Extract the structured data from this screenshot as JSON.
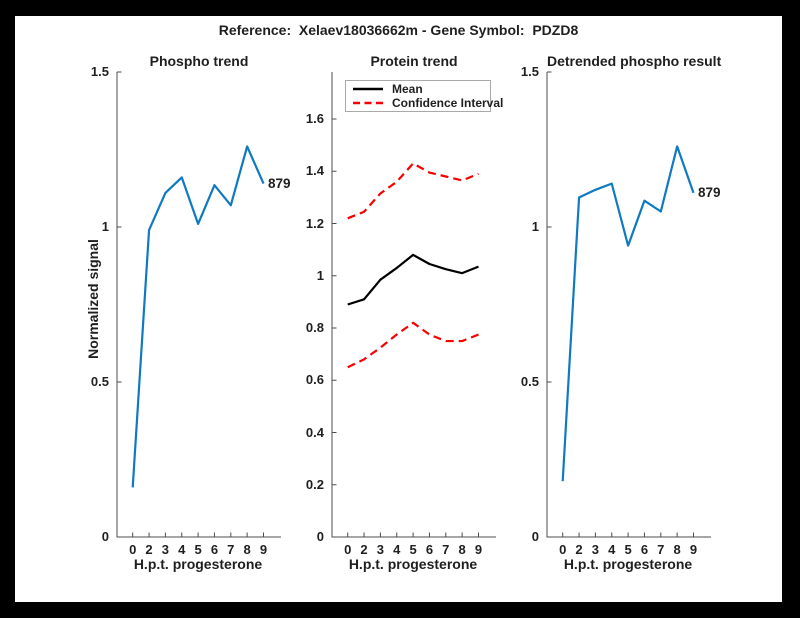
{
  "figure_title": "Reference:  Xelaev18036662m - Gene Symbol:  PDZD8",
  "colors": {
    "blue": "#0f79c2",
    "red": "#f80000",
    "black": "#000000",
    "axis": "#4d4d4d",
    "text": "#1f1f1f",
    "legend_border": "#a9a9a9",
    "figure_bg": "#ffffff",
    "page_bg": "#000000"
  },
  "chart_data": [
    {
      "type": "line",
      "title": "Phospho trend",
      "xlabel": "H.p.t. progesterone",
      "ylabel": "Normalized signal",
      "x_values": [
        0,
        2,
        3,
        4,
        5,
        6,
        7,
        8,
        9
      ],
      "x_tick_labels": [
        "0",
        "2",
        "3",
        "4",
        "5",
        "6",
        "7",
        "8",
        "9"
      ],
      "ylim": [
        0,
        1.5
      ],
      "ytick_values": [
        0,
        0.5,
        1,
        1.5
      ],
      "ytick_labels": [
        "0",
        "0.5",
        "1",
        "1.5"
      ],
      "grid": false,
      "legend": null,
      "series": [
        {
          "name": "phospho-trend",
          "color": "blue",
          "dash": "solid",
          "values": [
            0.16,
            0.99,
            1.11,
            1.16,
            1.01,
            1.135,
            1.07,
            1.26,
            1.14
          ]
        }
      ],
      "end_label": "879"
    },
    {
      "type": "line",
      "title": "Protein trend",
      "xlabel": "H.p.t. progesterone",
      "ylabel": "",
      "x_values": [
        0,
        2,
        3,
        4,
        5,
        6,
        7,
        8,
        9
      ],
      "x_tick_labels": [
        "0",
        "2",
        "3",
        "4",
        "5",
        "6",
        "7",
        "8",
        "9"
      ],
      "ylim": [
        0,
        1.78
      ],
      "ytick_values": [
        0,
        0.2,
        0.4,
        0.6,
        0.8,
        1,
        1.2,
        1.4,
        1.6
      ],
      "ytick_labels": [
        "0",
        "0.2",
        "0.4",
        "0.6",
        "0.8",
        "1",
        "1.2",
        "1.4",
        "1.6"
      ],
      "grid": false,
      "legend": [
        {
          "label": "Mean",
          "color": "black",
          "dash": "solid"
        },
        {
          "label": "Confidence Interval",
          "color": "red",
          "dash": "dashed"
        }
      ],
      "legend_position": "northwest",
      "series": [
        {
          "name": "mean",
          "color": "black",
          "dash": "solid",
          "values": [
            0.89,
            0.91,
            0.985,
            1.03,
            1.08,
            1.045,
            1.025,
            1.01,
            1.035
          ]
        },
        {
          "name": "confidence-interval-upper",
          "color": "red",
          "dash": "dashed",
          "values": [
            1.22,
            1.245,
            1.315,
            1.36,
            1.43,
            1.395,
            1.38,
            1.365,
            1.39
          ]
        },
        {
          "name": "confidence-interval-lower",
          "color": "red",
          "dash": "dashed",
          "values": [
            0.65,
            0.68,
            0.725,
            0.775,
            0.82,
            0.775,
            0.75,
            0.75,
            0.775
          ]
        }
      ],
      "end_label": null
    },
    {
      "type": "line",
      "title": "Detrended phospho result",
      "xlabel": "H.p.t. progesterone",
      "ylabel": "",
      "x_values": [
        0,
        2,
        3,
        4,
        5,
        6,
        7,
        8,
        9
      ],
      "x_tick_labels": [
        "0",
        "2",
        "3",
        "4",
        "5",
        "6",
        "7",
        "8",
        "9"
      ],
      "ylim": [
        0,
        1.5
      ],
      "ytick_values": [
        0,
        0.5,
        1,
        1.5
      ],
      "ytick_labels": [
        "0",
        "0.5",
        "1",
        "1.5"
      ],
      "grid": false,
      "legend": null,
      "series": [
        {
          "name": "detrended-phospho",
          "color": "blue",
          "dash": "solid",
          "values": [
            0.18,
            1.095,
            1.12,
            1.14,
            0.94,
            1.085,
            1.05,
            1.26,
            1.11
          ]
        }
      ],
      "end_label": "879"
    }
  ]
}
